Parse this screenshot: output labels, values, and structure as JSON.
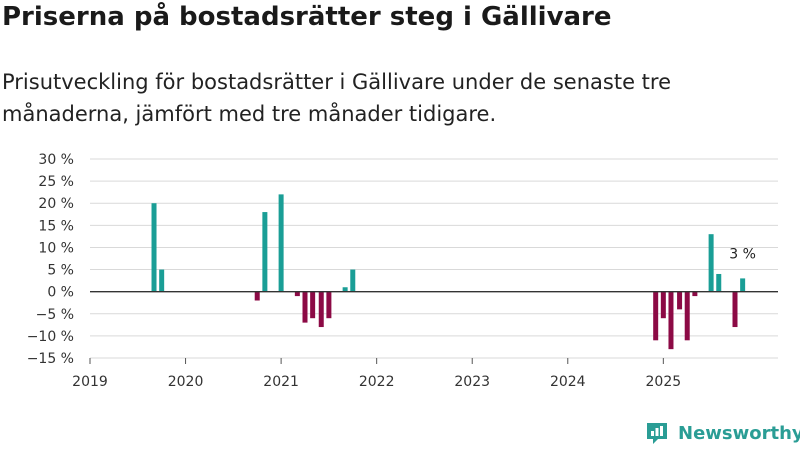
{
  "colors": {
    "positive": "#1a9e96",
    "negative": "#8c0a45",
    "brand": "#2a9d95",
    "grid": "#d9d9d9",
    "zero_line": "#333333"
  },
  "brand": {
    "name": "Newsworthy",
    "icon": "bar-chart-badge-icon"
  },
  "chart_data": {
    "type": "bar",
    "title": "Priserna på bostadsrätter steg i Gällivare",
    "subtitle": "Prisutveckling för bostadsrätter i Gällivare under de senaste tre månaderna, jämfört med tre månader tidigare.",
    "xlabel": "",
    "ylabel": "",
    "xlim": [
      2019.0,
      2026.2
    ],
    "ylim": [
      -15,
      30
    ],
    "yticks": [
      {
        "value": 30,
        "label": "30 %"
      },
      {
        "value": 25,
        "label": "25 %"
      },
      {
        "value": 20,
        "label": "20 %"
      },
      {
        "value": 15,
        "label": "15 %"
      },
      {
        "value": 10,
        "label": "10 %"
      },
      {
        "value": 5,
        "label": "5 %"
      },
      {
        "value": 0,
        "label": "0 %"
      },
      {
        "value": -5,
        "label": "−5 %"
      },
      {
        "value": -10,
        "label": "−10 %"
      },
      {
        "value": -15,
        "label": "−15 %"
      }
    ],
    "xticks": [
      {
        "value": 2019,
        "label": "2019"
      },
      {
        "value": 2020,
        "label": "2020"
      },
      {
        "value": 2021,
        "label": "2021"
      },
      {
        "value": 2022,
        "label": "2022"
      },
      {
        "value": 2023,
        "label": "2023"
      },
      {
        "value": 2024,
        "label": "2024"
      },
      {
        "value": 2025,
        "label": "2025"
      }
    ],
    "grid": true,
    "bars": [
      {
        "x": 2019.67,
        "value": 20
      },
      {
        "x": 2019.75,
        "value": 5
      },
      {
        "x": 2020.75,
        "value": -2
      },
      {
        "x": 2020.83,
        "value": 18
      },
      {
        "x": 2021.0,
        "value": 22
      },
      {
        "x": 2021.17,
        "value": -1
      },
      {
        "x": 2021.25,
        "value": -7
      },
      {
        "x": 2021.33,
        "value": -6
      },
      {
        "x": 2021.42,
        "value": -8
      },
      {
        "x": 2021.5,
        "value": -6
      },
      {
        "x": 2021.67,
        "value": 1
      },
      {
        "x": 2021.75,
        "value": 5
      },
      {
        "x": 2024.92,
        "value": -11
      },
      {
        "x": 2025.0,
        "value": -6
      },
      {
        "x": 2025.08,
        "value": -13
      },
      {
        "x": 2025.17,
        "value": -4
      },
      {
        "x": 2025.25,
        "value": -11
      },
      {
        "x": 2025.33,
        "value": -1
      },
      {
        "x": 2025.5,
        "value": 13
      },
      {
        "x": 2025.58,
        "value": 4
      },
      {
        "x": 2025.75,
        "value": -8
      },
      {
        "x": 2025.83,
        "value": 3
      }
    ],
    "annotations": [
      {
        "x": 2025.83,
        "value": 3,
        "text": "3 %"
      }
    ]
  }
}
